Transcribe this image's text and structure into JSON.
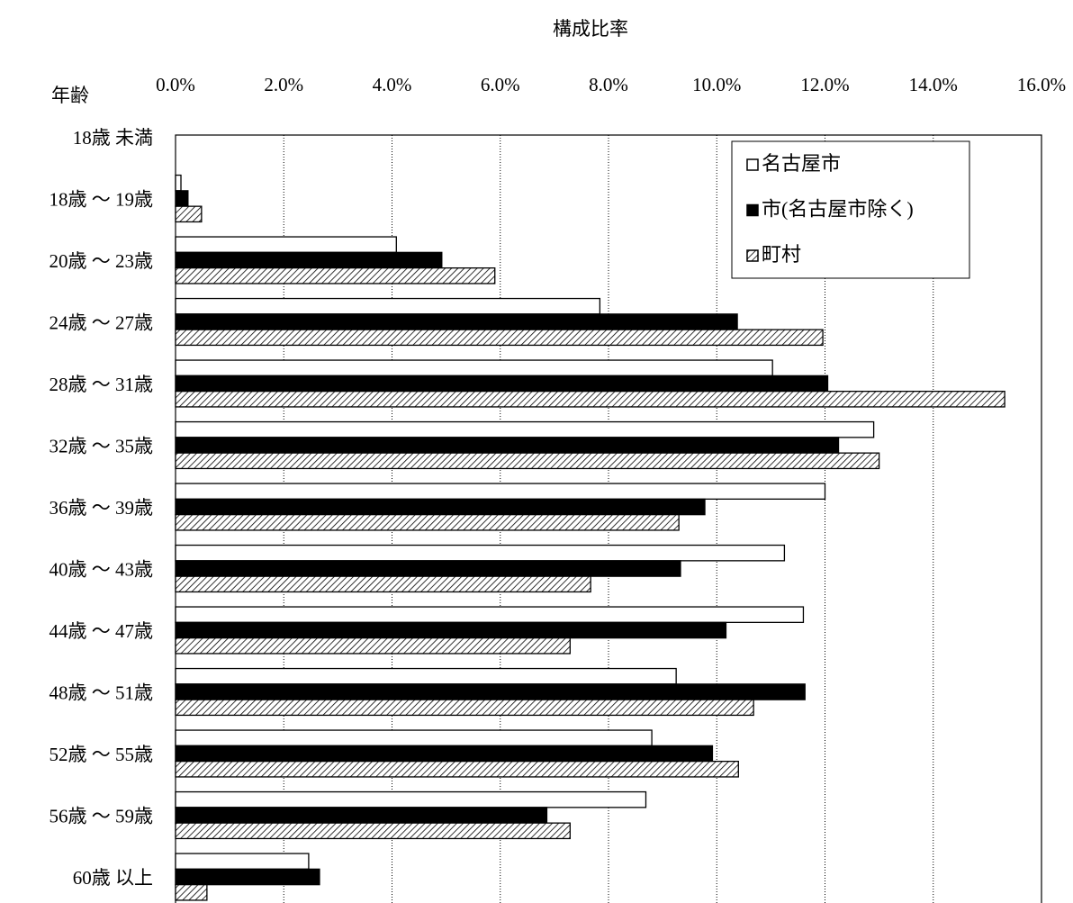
{
  "chart_data": {
    "type": "hbar",
    "title": "構成比率",
    "y_label": "年齢",
    "categories": [
      "18歳 未満",
      "18歳 ～ 19歳",
      "20歳 ～ 23歳",
      "24歳 ～ 27歳",
      "28歳 ～ 31歳",
      "32歳 ～ 35歳",
      "36歳 ～ 39歳",
      "40歳 ～ 43歳",
      "44歳 ～ 47歳",
      "48歳 ～ 51歳",
      "52歳 ～ 55歳",
      "56歳 ～ 59歳",
      "60歳 以上"
    ],
    "series": [
      {
        "name": "名古屋市",
        "color": "#ffffff",
        "values": [
          0,
          0.1,
          4.08,
          7.84,
          11.03,
          12.9,
          12.0,
          11.25,
          11.6,
          9.25,
          8.8,
          8.69,
          2.46
        ]
      },
      {
        "name": "市(名古屋市除く)",
        "color": "#000000",
        "values": [
          0,
          0.23,
          4.92,
          10.38,
          12.05,
          12.25,
          9.78,
          9.33,
          10.17,
          11.63,
          9.92,
          6.86,
          2.66
        ]
      },
      {
        "name": "町村",
        "color": "#000000",
        "pattern": "diagonal",
        "values": [
          0,
          0.48,
          5.9,
          11.96,
          15.32,
          13.0,
          9.3,
          7.67,
          7.29,
          10.68,
          10.4,
          7.29,
          0.58
        ]
      }
    ],
    "xlim": [
      0,
      16
    ],
    "xticks": [
      {
        "value": 0,
        "label": "0.0%"
      },
      {
        "value": 2,
        "label": "2.0%"
      },
      {
        "value": 4,
        "label": "4.0%"
      },
      {
        "value": 6,
        "label": "6.0%"
      },
      {
        "value": 8,
        "label": "8.0%"
      },
      {
        "value": 10,
        "label": "10.0%"
      },
      {
        "value": 12,
        "label": "12.0%"
      },
      {
        "value": 14,
        "label": "14.0%"
      },
      {
        "value": 16,
        "label": "16.0%"
      }
    ],
    "grid": true,
    "legend": "top-right"
  }
}
